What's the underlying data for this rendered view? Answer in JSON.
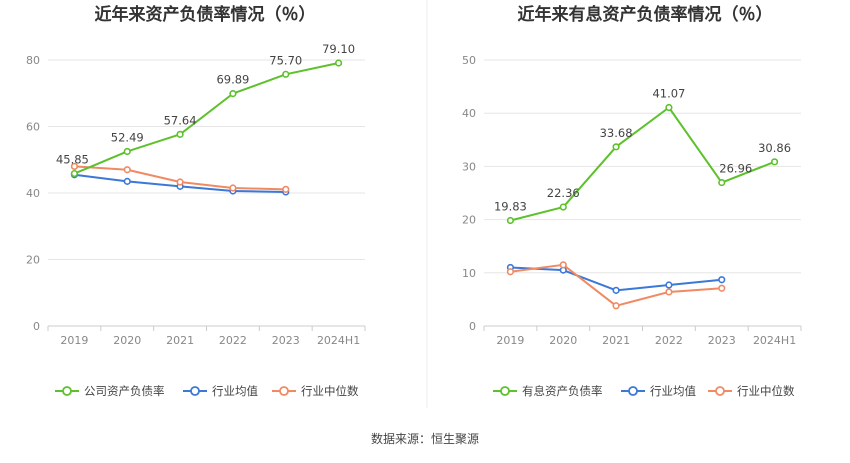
{
  "source": "数据来源：恒生聚源",
  "colors": {
    "primary": "#5cc12b",
    "avg": "#3b78d8",
    "median": "#f08a62",
    "grid": "#e6e6e6",
    "axis": "#cccccc"
  },
  "chart_data": [
    {
      "type": "line",
      "title": "近年来资产负债率情况（％）",
      "categories": [
        "2019",
        "2020",
        "2021",
        "2022",
        "2023",
        "2024H1"
      ],
      "ylim": [
        0,
        80
      ],
      "yticks": [
        0,
        20,
        40,
        60,
        80
      ],
      "legend_position": "bottom",
      "series": [
        {
          "name": "公司资产负债率",
          "values": [
            45.85,
            52.49,
            57.64,
            69.89,
            75.7,
            79.1
          ],
          "labels": [
            "45.85",
            "52.49",
            "57.64",
            "69.89",
            "75.70",
            "79.10"
          ]
        },
        {
          "name": "行业均值",
          "values": [
            45.5,
            43.5,
            42.0,
            40.6,
            40.3,
            null
          ]
        },
        {
          "name": "行业中位数",
          "values": [
            48.0,
            47.0,
            43.3,
            41.5,
            41.1,
            null
          ]
        }
      ]
    },
    {
      "type": "line",
      "title": "近年来有息资产负债率情况（％）",
      "categories": [
        "2019",
        "2020",
        "2021",
        "2022",
        "2023",
        "2024H1"
      ],
      "ylim": [
        0,
        50
      ],
      "yticks": [
        0,
        10,
        20,
        30,
        40,
        50
      ],
      "legend_position": "bottom",
      "series": [
        {
          "name": "有息资产负债率",
          "values": [
            19.83,
            22.36,
            33.68,
            41.07,
            26.96,
            30.86
          ],
          "labels": [
            "19.83",
            "22.36",
            "33.68",
            "41.07",
            "26.96",
            "30.86"
          ]
        },
        {
          "name": "行业均值",
          "values": [
            11.0,
            10.5,
            6.7,
            7.7,
            8.7,
            null
          ]
        },
        {
          "name": "行业中位数",
          "values": [
            10.2,
            11.5,
            3.8,
            6.4,
            7.1,
            null
          ]
        }
      ]
    }
  ]
}
